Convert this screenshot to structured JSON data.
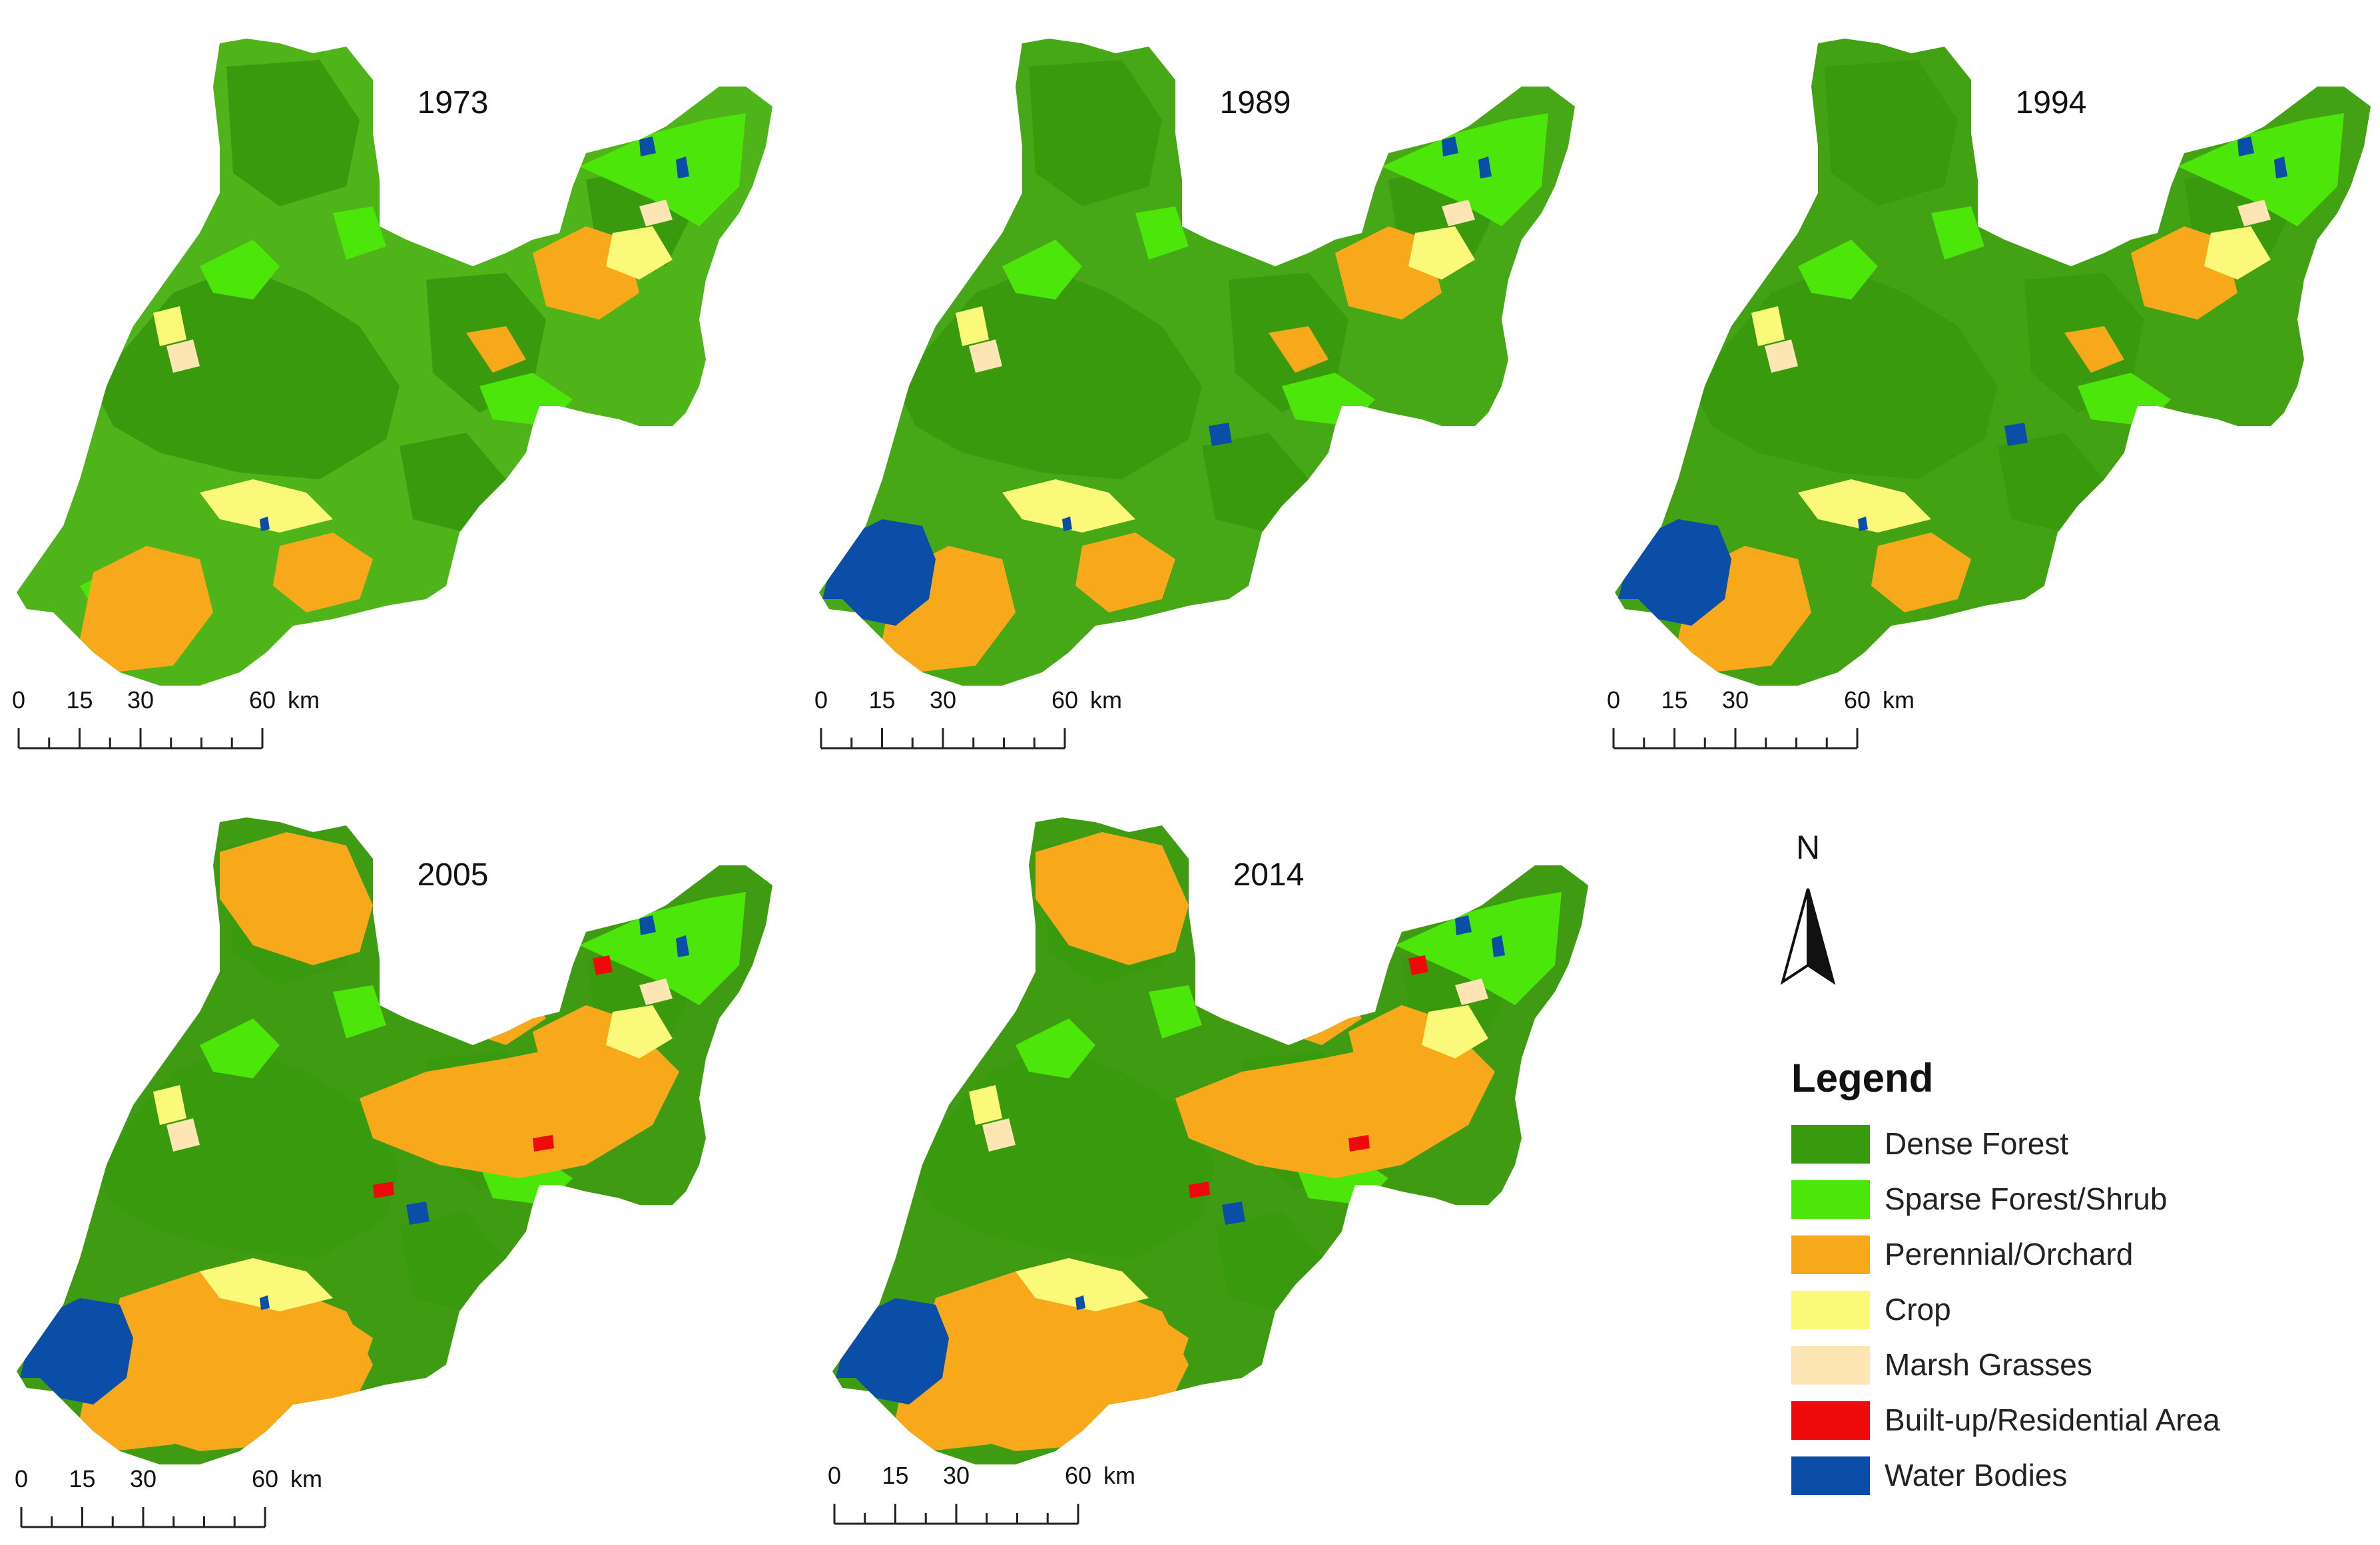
{
  "maps": [
    {
      "year": "1973",
      "water_large": false,
      "orange_heavy": false
    },
    {
      "year": "1989",
      "water_large": true,
      "orange_heavy": false
    },
    {
      "year": "1994",
      "water_large": true,
      "orange_heavy": false
    },
    {
      "year": "2005",
      "water_large": true,
      "orange_heavy": true
    },
    {
      "year": "2014",
      "water_large": true,
      "orange_heavy": true
    }
  ],
  "scale_bar": {
    "labels": [
      "0",
      "15",
      "30",
      "60"
    ],
    "unit": "km",
    "values": [
      0,
      15,
      30,
      60
    ]
  },
  "north_arrow": {
    "label": "N"
  },
  "legend": {
    "title": "Legend",
    "items": [
      {
        "label": "Dense Forest",
        "color": "#3a9a0e"
      },
      {
        "label": "Sparse Forest/Shrub",
        "color": "#4de60a"
      },
      {
        "label": "Perennial/Orchard",
        "color": "#f7a81b"
      },
      {
        "label": "Crop",
        "color": "#fbf979"
      },
      {
        "label": "Marsh Grasses",
        "color": "#fde6b4"
      },
      {
        "label": "Built-up/Residential Area",
        "color": "#ee0a0a"
      },
      {
        "label": "Water Bodies",
        "color": "#0b4ea8"
      }
    ]
  }
}
